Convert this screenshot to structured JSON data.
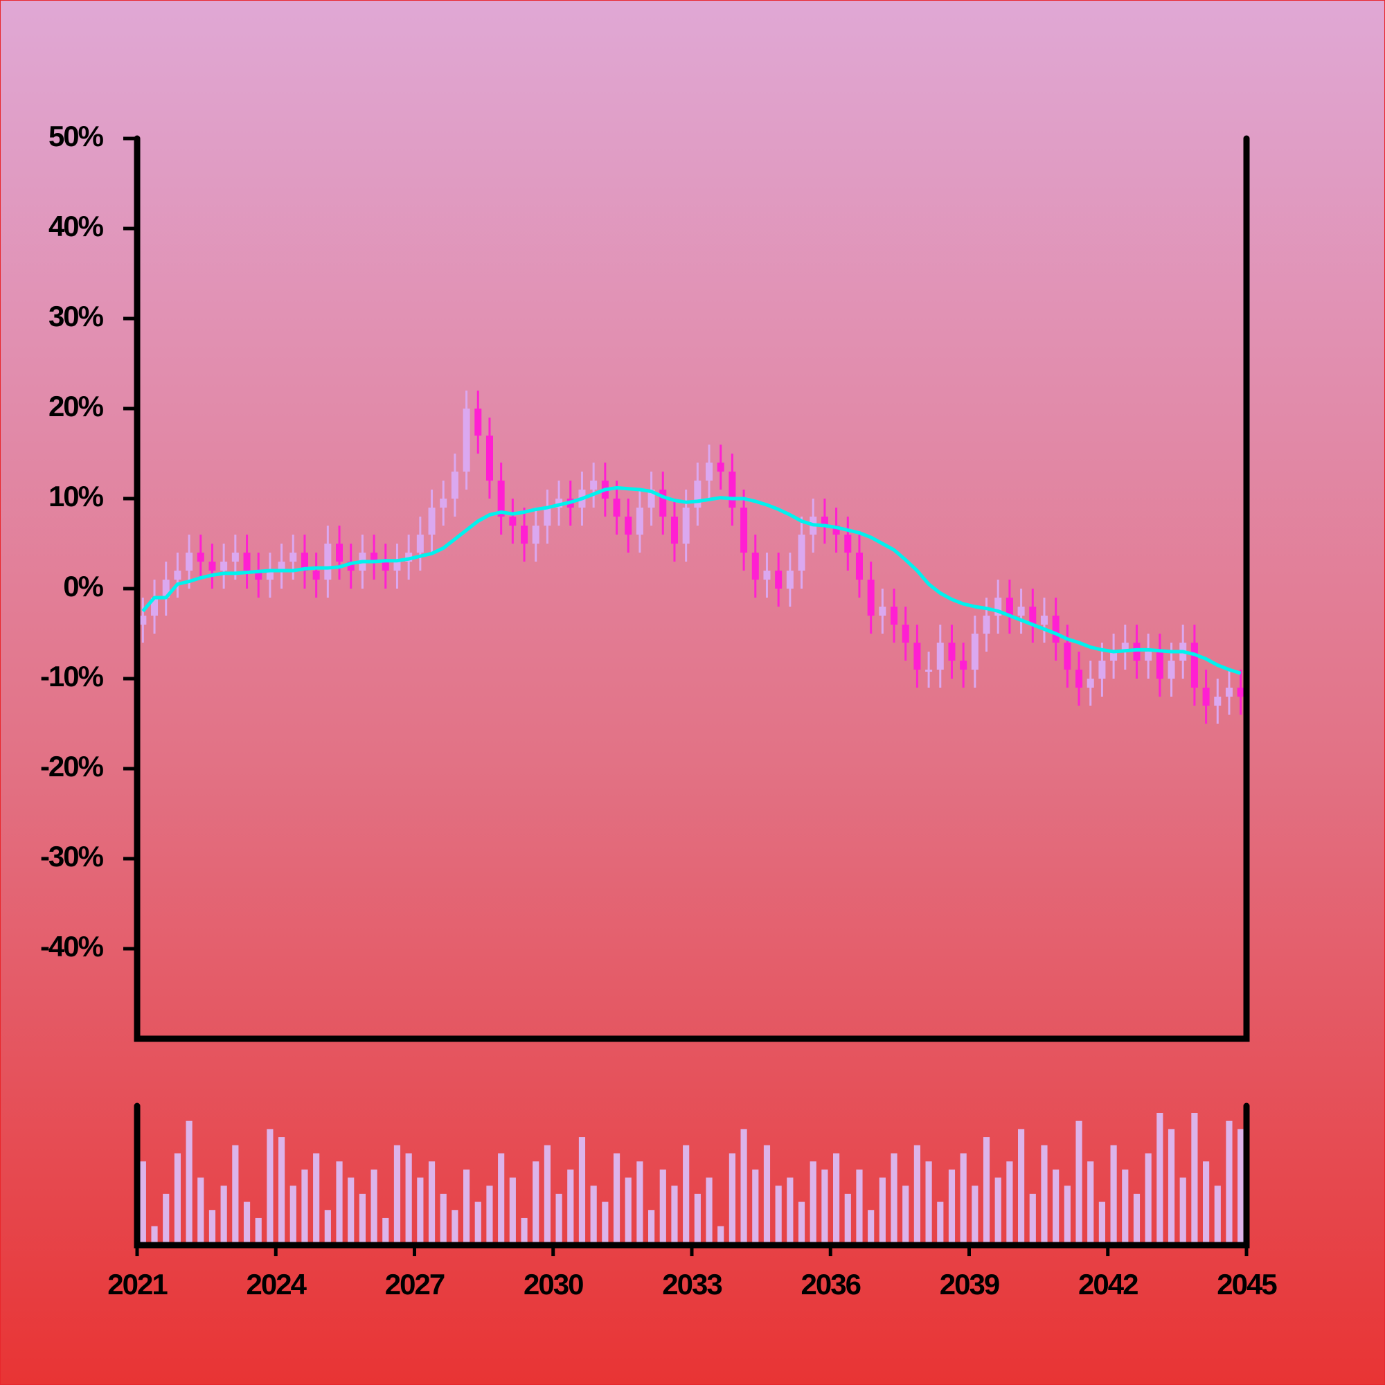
{
  "chart_data": {
    "type": "candlestick",
    "x": [
      2021,
      2021.25,
      2021.5,
      2021.75,
      2022,
      2022.25,
      2022.5,
      2022.75,
      2023,
      2023.25,
      2023.5,
      2023.75,
      2024,
      2024.25,
      2024.5,
      2024.75,
      2025,
      2025.25,
      2025.5,
      2025.75,
      2026,
      2026.25,
      2026.5,
      2026.75,
      2027,
      2027.25,
      2027.5,
      2027.75,
      2028,
      2028.25,
      2028.5,
      2028.75,
      2029,
      2029.25,
      2029.5,
      2029.75,
      2030,
      2030.25,
      2030.5,
      2030.75,
      2031,
      2031.25,
      2031.5,
      2031.75,
      2032,
      2032.25,
      2032.5,
      2032.75,
      2033,
      2033.25,
      2033.5,
      2033.75,
      2034,
      2034.25,
      2034.5,
      2034.75,
      2035,
      2035.25,
      2035.5,
      2035.75,
      2036,
      2036.25,
      2036.5,
      2036.75,
      2037,
      2037.25,
      2037.5,
      2037.75,
      2038,
      2038.25,
      2038.5,
      2038.75,
      2039,
      2039.25,
      2039.5,
      2039.75,
      2040,
      2040.25,
      2040.5,
      2040.75,
      2041,
      2041.25,
      2041.5,
      2041.75,
      2042,
      2042.25,
      2042.5,
      2042.75,
      2043,
      2043.25,
      2043.5,
      2043.75,
      2044,
      2044.25,
      2044.5,
      2044.75
    ],
    "open": [
      -4,
      -3,
      -1,
      1,
      2,
      4,
      3,
      2,
      3,
      4,
      2,
      1,
      2,
      3,
      4,
      2,
      1,
      5,
      3,
      2,
      4,
      3,
      2,
      3,
      4,
      6,
      9,
      10,
      13,
      20,
      17,
      12,
      8,
      7,
      5,
      7,
      9,
      10,
      9,
      11,
      12,
      10,
      8,
      6,
      9,
      11,
      8,
      5,
      9,
      12,
      14,
      13,
      9,
      4,
      1,
      2,
      0,
      2,
      6,
      8,
      7,
      6,
      4,
      1,
      -3,
      -2,
      -4,
      -6,
      -9,
      -9,
      -6,
      -8,
      -9,
      -5,
      -3,
      -1,
      -3,
      -2,
      -4,
      -3,
      -6,
      -9,
      -11,
      -10,
      -8,
      -7,
      -6,
      -8,
      -7,
      -10,
      -8,
      -6,
      -11,
      -13,
      -12,
      -11
    ],
    "high": [
      -1,
      1,
      3,
      4,
      6,
      6,
      5,
      5,
      6,
      6,
      4,
      4,
      5,
      6,
      6,
      4,
      7,
      7,
      5,
      6,
      6,
      5,
      5,
      6,
      8,
      11,
      12,
      15,
      22,
      22,
      19,
      14,
      10,
      9,
      9,
      11,
      12,
      12,
      13,
      14,
      14,
      12,
      10,
      11,
      13,
      13,
      10,
      11,
      14,
      16,
      16,
      15,
      11,
      6,
      4,
      4,
      4,
      8,
      10,
      10,
      9,
      8,
      6,
      3,
      0,
      0,
      -2,
      -4,
      -7,
      -4,
      -4,
      -6,
      -3,
      -1,
      1,
      1,
      0,
      0,
      -1,
      -1,
      -4,
      -7,
      -8,
      -6,
      -5,
      -4,
      -4,
      -5,
      -5,
      -6,
      -4,
      -4,
      -9,
      -10,
      -9,
      -9
    ],
    "low": [
      -6,
      -5,
      -3,
      -1,
      0,
      1,
      0,
      0,
      1,
      0,
      -1,
      -1,
      0,
      1,
      0,
      -1,
      -1,
      1,
      0,
      0,
      1,
      0,
      0,
      1,
      2,
      4,
      7,
      8,
      11,
      15,
      10,
      6,
      5,
      3,
      3,
      5,
      7,
      7,
      7,
      9,
      8,
      6,
      4,
      4,
      7,
      6,
      3,
      3,
      7,
      10,
      11,
      7,
      2,
      -1,
      -1,
      -2,
      -2,
      0,
      4,
      5,
      4,
      2,
      -1,
      -5,
      -5,
      -6,
      -8,
      -11,
      -11,
      -11,
      -10,
      -11,
      -11,
      -7,
      -5,
      -5,
      -5,
      -6,
      -6,
      -8,
      -11,
      -13,
      -13,
      -12,
      -10,
      -9,
      -10,
      -10,
      -12,
      -12,
      -10,
      -13,
      -15,
      -15,
      -14,
      -14
    ],
    "close": [
      -3,
      -1,
      1,
      2,
      4,
      3,
      2,
      3,
      4,
      2,
      1,
      2,
      3,
      4,
      2,
      1,
      5,
      3,
      2,
      4,
      3,
      2,
      3,
      4,
      6,
      9,
      10,
      13,
      20,
      17,
      12,
      8,
      7,
      5,
      7,
      9,
      10,
      9,
      11,
      12,
      10,
      8,
      6,
      9,
      11,
      8,
      5,
      9,
      12,
      14,
      13,
      9,
      4,
      1,
      2,
      0,
      2,
      6,
      8,
      7,
      6,
      4,
      1,
      -3,
      -2,
      -4,
      -6,
      -9,
      -9,
      -6,
      -8,
      -9,
      -5,
      -3,
      -1,
      -3,
      -2,
      -4,
      -3,
      -6,
      -9,
      -11,
      -10,
      -8,
      -7,
      -6,
      -8,
      -7,
      -10,
      -8,
      -6,
      -11,
      -13,
      -12,
      -11,
      -12
    ],
    "volume": [
      50,
      10,
      30,
      55,
      75,
      40,
      20,
      35,
      60,
      25,
      15,
      70,
      65,
      35,
      45,
      55,
      20,
      50,
      40,
      30,
      45,
      15,
      60,
      55,
      40,
      50,
      30,
      20,
      45,
      25,
      35,
      55,
      40,
      15,
      50,
      60,
      30,
      45,
      65,
      35,
      25,
      55,
      40,
      50,
      20,
      45,
      35,
      60,
      30,
      40,
      10,
      55,
      70,
      45,
      60,
      35,
      40,
      25,
      50,
      45,
      55,
      30,
      45,
      20,
      40,
      55,
      35,
      60,
      50,
      25,
      45,
      55,
      35,
      65,
      40,
      50,
      70,
      30,
      60,
      45,
      35,
      75,
      50,
      25,
      60,
      45,
      30,
      55,
      80,
      70,
      40,
      80,
      50,
      35,
      75,
      70
    ],
    "moving_average": [
      -2.5,
      -1,
      -1,
      0.5,
      0.8,
      1.2,
      1.5,
      1.7,
      1.7,
      1.8,
      1.9,
      2,
      2,
      2,
      2.2,
      2.3,
      2.3,
      2.4,
      2.8,
      3,
      3,
      3.1,
      3.1,
      3.3,
      3.6,
      3.9,
      4.5,
      5.5,
      6.5,
      7.5,
      8.2,
      8.5,
      8.3,
      8.5,
      8.8,
      9,
      9.3,
      9.6,
      10,
      10.5,
      11,
      11.2,
      11.1,
      11,
      10.8,
      10.2,
      9.8,
      9.6,
      9.7,
      9.9,
      10.1,
      10,
      10,
      9.7,
      9.3,
      8.8,
      8.2,
      7.5,
      7.1,
      7,
      6.8,
      6.5,
      6.2,
      5.7,
      5,
      4.3,
      3.2,
      2,
      0.5,
      -0.5,
      -1.2,
      -1.7,
      -2,
      -2.2,
      -2.5,
      -3,
      -3.5,
      -4,
      -4.5,
      -5,
      -5.6,
      -6,
      -6.5,
      -6.8,
      -7,
      -6.9,
      -6.8,
      -6.8,
      -6.9,
      -7,
      -7,
      -7.3,
      -7.8,
      -8.5,
      -9,
      -9.4
    ],
    "up_color": "#dba8f0",
    "down_color": "#ff1fd2",
    "volume_color": "#dcb4ea",
    "ma_color": "#00f2ee",
    "xlim": [
      2021,
      2045
    ],
    "xticks": [
      2021,
      2024,
      2027,
      2030,
      2033,
      2036,
      2039,
      2042,
      2045
    ],
    "ylim": [
      -50,
      50
    ],
    "yticks": [
      {
        "value": -40,
        "label": "-40%"
      },
      {
        "value": -30,
        "label": "-30%"
      },
      {
        "value": -20,
        "label": "-20%"
      },
      {
        "value": -10,
        "label": "-10%"
      },
      {
        "value": 0,
        "label": "0%"
      },
      {
        "value": 10,
        "label": "10%"
      },
      {
        "value": 20,
        "label": "20%"
      },
      {
        "value": 30,
        "label": "30%"
      },
      {
        "value": 40,
        "label": "40%"
      },
      {
        "value": 50,
        "label": "50%"
      }
    ]
  }
}
